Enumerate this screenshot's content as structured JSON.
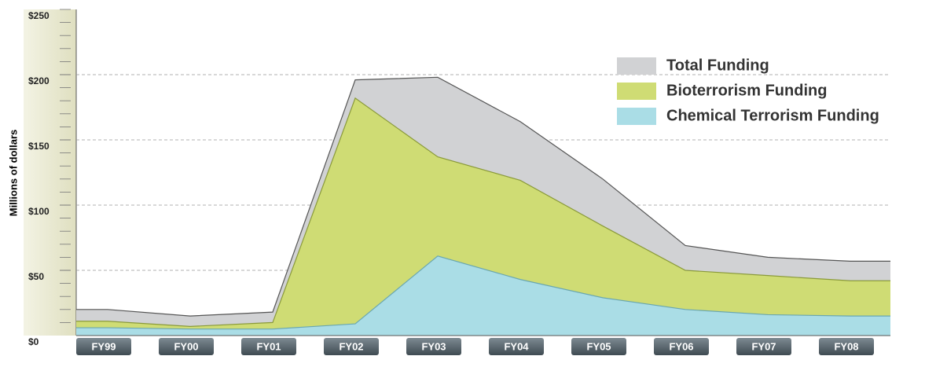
{
  "chart_data": {
    "type": "area",
    "y_label": "Millions of dollars",
    "categories": [
      "FY99",
      "FY00",
      "FY01",
      "FY02",
      "FY03",
      "FY04",
      "FY05",
      "FY06",
      "FY07",
      "FY08"
    ],
    "series": [
      {
        "name": "Total Funding",
        "color": "#d1d2d4",
        "values": [
          20,
          15,
          18,
          196,
          198,
          164,
          120,
          69,
          60,
          57
        ]
      },
      {
        "name": "Bioterrorism Funding",
        "color": "#cfdc74",
        "values": [
          11,
          7,
          10,
          182,
          137,
          119,
          84,
          50,
          46,
          42
        ]
      },
      {
        "name": "Chemical Terrorism Funding",
        "color": "#aadde6",
        "values": [
          6,
          5,
          5,
          9,
          61,
          43,
          29,
          20,
          16,
          15
        ]
      }
    ],
    "ylim": [
      0,
      250
    ],
    "yticks": [
      {
        "value": 0,
        "label": "$0"
      },
      {
        "value": 50,
        "label": "$50"
      },
      {
        "value": 100,
        "label": "$100"
      },
      {
        "value": 150,
        "label": "$150"
      },
      {
        "value": 200,
        "label": "$200"
      },
      {
        "value": 250,
        "label": "$250"
      }
    ],
    "grid": true
  }
}
